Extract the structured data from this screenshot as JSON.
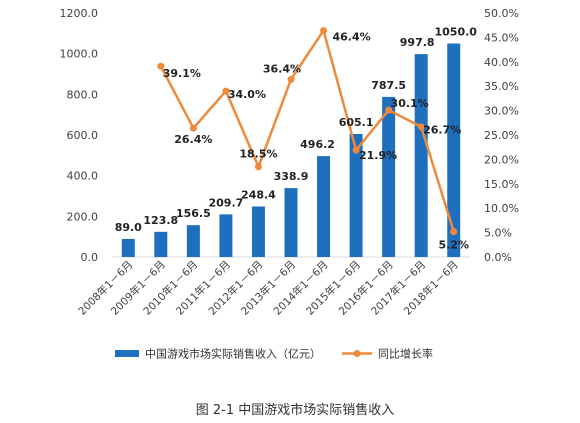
{
  "chart_data": {
    "type": "bar",
    "categories": [
      "2008年1－6月",
      "2009年1－6月",
      "2010年1－6月",
      "2011年1－6月",
      "2012年1－6月",
      "2013年1－6月",
      "2014年1－6月",
      "2015年1－6月",
      "2016年1－6月",
      "2017年1－6月",
      "2018年1－6月"
    ],
    "series": [
      {
        "name": "中国游戏市场实际销售收入（亿元）",
        "type": "bar",
        "axis": "left",
        "color": "#1f6fbf",
        "values": [
          89.0,
          123.8,
          156.5,
          209.7,
          248.4,
          338.9,
          496.2,
          605.1,
          787.5,
          997.8,
          1050.0
        ],
        "labels": [
          "89.0",
          "123.8",
          "156.5",
          "209.7",
          "248.4",
          "338.9",
          "496.2",
          "605.1",
          "787.5",
          "997.8",
          "1050.0"
        ]
      },
      {
        "name": "同比增长率",
        "type": "line",
        "axis": "right",
        "color": "#ed8a3c",
        "values": [
          null,
          39.1,
          26.4,
          34.0,
          18.5,
          36.4,
          46.4,
          21.9,
          30.1,
          26.7,
          5.2
        ],
        "labels": [
          "",
          "39.1%",
          "26.4%",
          "34.0%",
          "18.5%",
          "36.4%",
          "46.4%",
          "21.9%",
          "30.1%",
          "26.7%",
          "5.2%"
        ]
      }
    ],
    "y_left": {
      "ylim": [
        0,
        1200
      ],
      "ticks": [
        0,
        200,
        400,
        600,
        800,
        1000,
        1200
      ],
      "tick_labels": [
        "0.0",
        "200.0",
        "400.0",
        "600.0",
        "800.0",
        "1000.0",
        "1200.0"
      ]
    },
    "y_right": {
      "ylim": [
        0,
        50
      ],
      "ticks": [
        0,
        5,
        10,
        15,
        20,
        25,
        30,
        35,
        40,
        45,
        50
      ],
      "tick_labels": [
        "0.0%",
        "5.0%",
        "10.0%",
        "15.0%",
        "20.0%",
        "25.0%",
        "30.0%",
        "35.0%",
        "40.0%",
        "45.0%",
        "50.0%"
      ]
    },
    "grid": false,
    "legend": "bottom",
    "title": "",
    "xlabel": "",
    "caption": "图 2-1  中国游戏市场实际销售收入"
  }
}
